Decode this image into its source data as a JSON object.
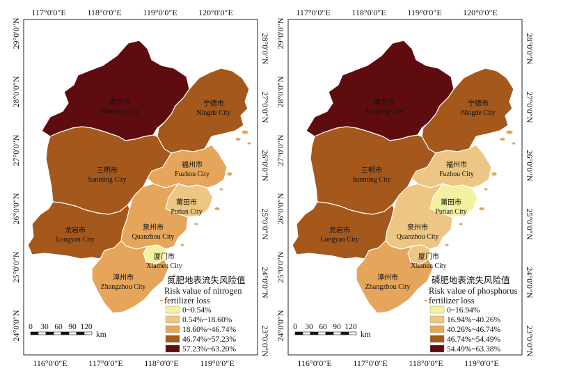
{
  "colors": {
    "class1": "#f3f0a0",
    "class2": "#ecc682",
    "class3": "#e5a65b",
    "class4": "#a5581c",
    "class5": "#5e0c0f",
    "border": "#ffffff",
    "frame": "#222222"
  },
  "cities": [
    {
      "key": "nanping",
      "cn": "南平市",
      "en": "Nanping City"
    },
    {
      "key": "ningde",
      "cn": "宁德市",
      "en": "Ningde City"
    },
    {
      "key": "sanming",
      "cn": "三明市",
      "en": "Sanming City"
    },
    {
      "key": "fuzhou",
      "cn": "福州市",
      "en": "Fuzhou City"
    },
    {
      "key": "putian",
      "cn": "莆田市",
      "en": "Putian City"
    },
    {
      "key": "longyan",
      "cn": "龙岩市",
      "en": "Longyan City"
    },
    {
      "key": "quanzhou",
      "cn": "泉州市",
      "en": "Quanzhou City"
    },
    {
      "key": "xiamen",
      "cn": "厦门市",
      "en": "Xiamen City"
    },
    {
      "key": "zhangzhou",
      "cn": "漳州市",
      "en": "Zhangzhou City"
    }
  ],
  "axes": {
    "top": [
      "117°0′0″E",
      "118°0′0″E",
      "119°0′0″E",
      "120°0′0″E"
    ],
    "bottom": [
      "116°0′0″E",
      "117°0′0″E",
      "118°0′0″E",
      "119°0′0″E"
    ],
    "left": [
      "29°0′0″N",
      "28°0′0″N",
      "27°0′0″N",
      "26°0′0″N",
      "25°0′0″N",
      "24°0′0″N"
    ],
    "right": [
      "28°0′0″N",
      "27°0′0″N",
      "26°0′0″N",
      "25°0′0″N",
      "24°0′0″N",
      "23°0′0″N"
    ]
  },
  "scale": {
    "ticks": [
      "0",
      "30",
      "60",
      "90",
      "120"
    ],
    "unit": "km"
  },
  "maps": [
    {
      "legend": {
        "title_cn": "氮肥地表流失风险值",
        "title_en1": "Risk value of nitrogen",
        "title_en2": "fertilizer loss",
        "items": [
          "0~0.54%",
          "0.54%~18.60%",
          "18.60%~46.74%",
          "46.74%~57.23%",
          "57.23%~63.20%"
        ]
      },
      "city_class": {
        "nanping": 5,
        "ningde": 4,
        "sanming": 4,
        "fuzhou": 3,
        "putian": 2,
        "longyan": 4,
        "quanzhou": 3,
        "xiamen": 1,
        "zhangzhou": 3
      }
    },
    {
      "legend": {
        "title_cn": "磷肥地表流失风险值",
        "title_en1": "Risk value of phosphorus",
        "title_en2": "fertilizer loss",
        "items": [
          "0~16.94%",
          "16.94%~40.26%",
          "40.26%~46.74%",
          "46.74%~54.49%",
          "54.49%~63.38%"
        ]
      },
      "city_class": {
        "nanping": 5,
        "ningde": 4,
        "sanming": 4,
        "fuzhou": 2,
        "putian": 1,
        "longyan": 4,
        "quanzhou": 2,
        "xiamen": 2,
        "zhangzhou": 3
      }
    }
  ]
}
